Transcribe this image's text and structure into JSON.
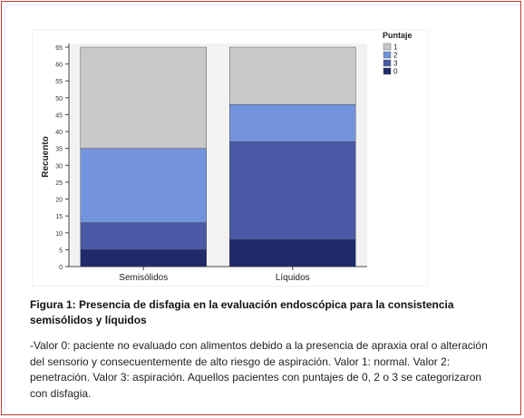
{
  "chart_data": {
    "type": "bar",
    "stacked": true,
    "categories": [
      "Semisólidos",
      "Líquidos"
    ],
    "series": [
      {
        "name": "0",
        "color": "#1f2a6b",
        "values": [
          5,
          8
        ]
      },
      {
        "name": "3",
        "color": "#4a5aa6",
        "values": [
          8,
          29
        ]
      },
      {
        "name": "2",
        "color": "#7393dc",
        "values": [
          22,
          11
        ]
      },
      {
        "name": "1",
        "color": "#c8c8c8",
        "values": [
          30,
          17
        ]
      }
    ],
    "legend_order": [
      "1",
      "2",
      "3",
      "0"
    ],
    "title": "",
    "xlabel": "",
    "ylabel": "Recuento",
    "ylim": [
      0,
      65
    ],
    "yticks": [
      0,
      5,
      10,
      15,
      20,
      25,
      30,
      35,
      40,
      45,
      50,
      55,
      60,
      65
    ],
    "legend_title": "Puntaje",
    "legend_position": "top-right",
    "grid": false,
    "plot_background": "#f2f2f2"
  },
  "caption": "Figura 1: Presencia de disfagia en la evaluación endoscópica para la consistencia semisólidos y líquidos",
  "note": "-Valor 0: paciente no evaluado con alimentos debido a la presencia de apraxia oral o alteración del sensorio y consecuentemente de alto riesgo de aspiración. Valor 1: normal. Valor 2: penetración. Valor 3: aspiración. Aquellos pacientes con puntajes de 0, 2 o 3 se categorizaron con disfagia."
}
